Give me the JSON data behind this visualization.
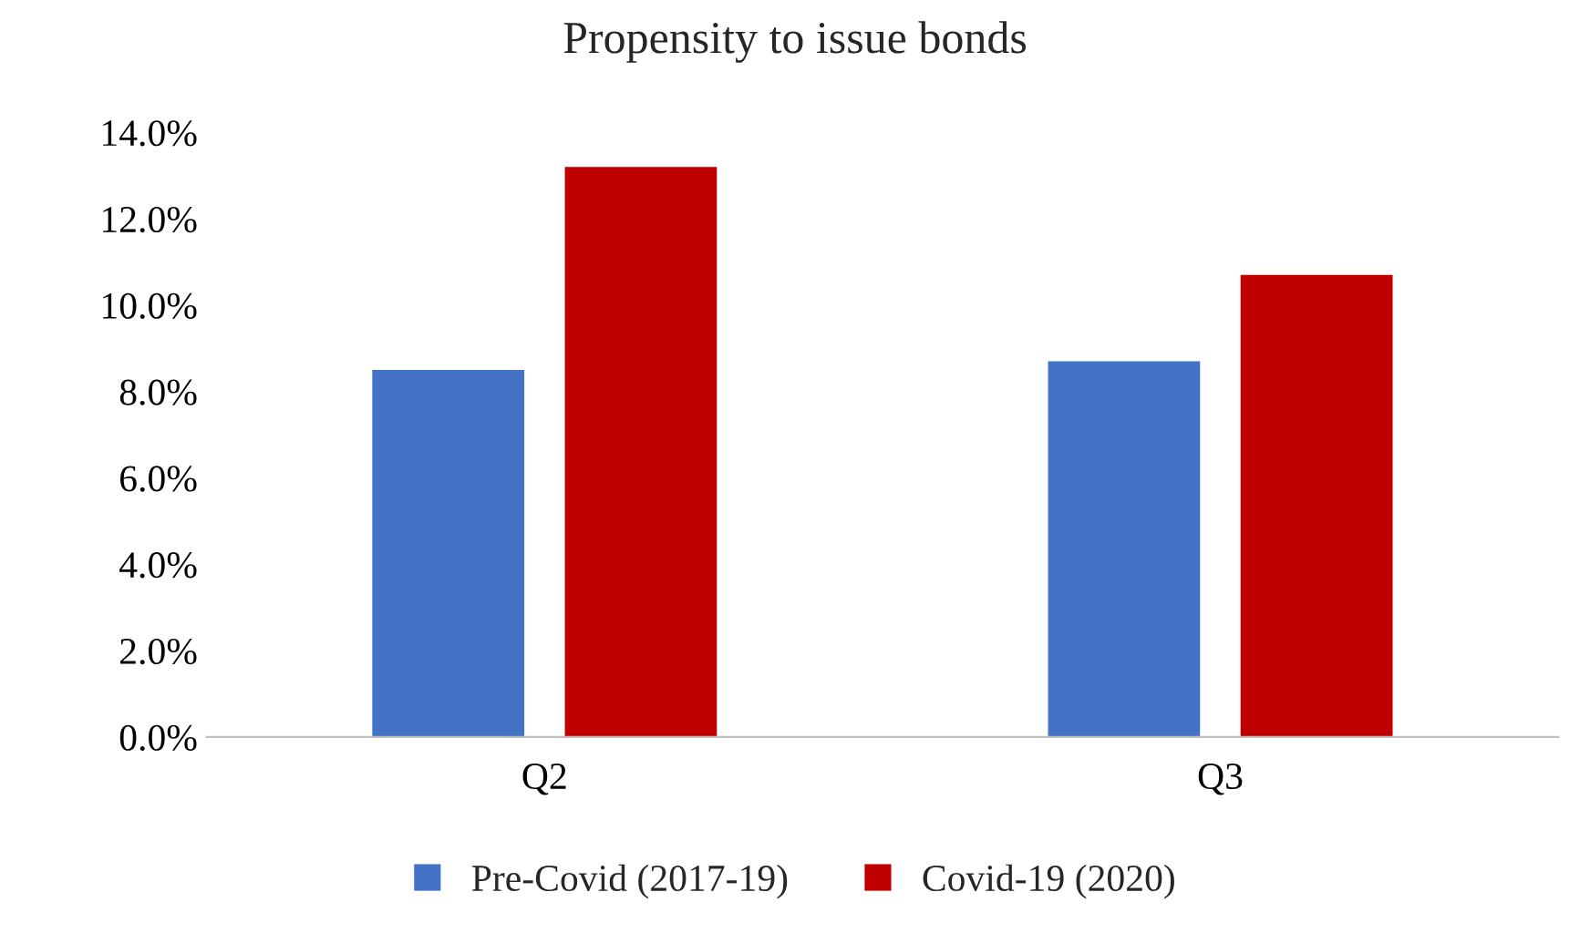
{
  "chart_data": {
    "type": "bar",
    "title": "Propensity to issue bonds",
    "categories": [
      "Q2",
      "Q3"
    ],
    "series": [
      {
        "name": "Pre-Covid (2017-19)",
        "color": "#4472c4",
        "values": [
          8.5,
          8.7
        ]
      },
      {
        "name": "Covid-19 (2020)",
        "color": "#c00000",
        "values": [
          13.2,
          10.7
        ]
      }
    ],
    "ylim": [
      0,
      14
    ],
    "yticks": [
      {
        "value": 0,
        "label": "0.0%"
      },
      {
        "value": 2,
        "label": "2.0%"
      },
      {
        "value": 4,
        "label": "4.0%"
      },
      {
        "value": 6,
        "label": "6.0%"
      },
      {
        "value": 8,
        "label": "8.0%"
      },
      {
        "value": 10,
        "label": "10.0%"
      },
      {
        "value": 12,
        "label": "12.0%"
      },
      {
        "value": 14,
        "label": "14.0%"
      }
    ],
    "legend": "bottom"
  }
}
